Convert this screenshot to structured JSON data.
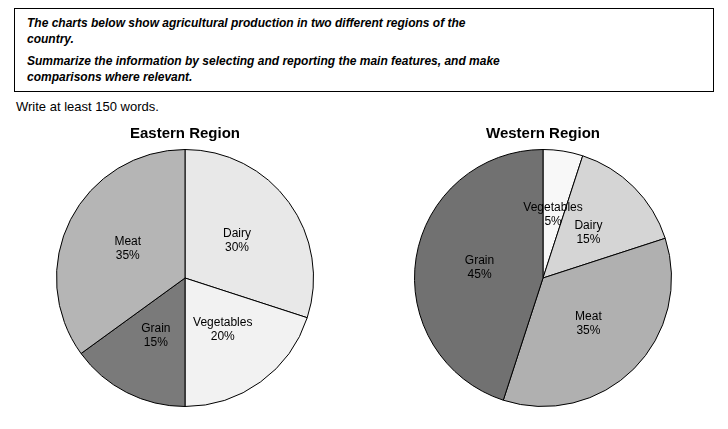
{
  "annotations": [
    "The charts below show agricultural production in two different regions of the\ncountry.",
    "Summarize the information by selecting and reporting the main features, and make\ncomparisons where relevant."
  ],
  "subtitle": "Write at least 150 words.",
  "chart_data": [
    {
      "type": "pie",
      "title": "Eastern Region",
      "categories": [
        "Dairy",
        "Vegetables",
        "Grain",
        "Meat"
      ],
      "values": [
        30,
        20,
        15,
        35
      ],
      "value_labels": [
        "Dairy\n30%",
        "Vegetables\n20%",
        "Grain\n15%",
        "Meat\n35%"
      ],
      "colors": [
        "#e8e8e8",
        "#f2f2f2",
        "#7a7a7a",
        "#b5b5b5"
      ],
      "data_labels": true,
      "legend": false
    },
    {
      "type": "pie",
      "title": "Western Region",
      "categories": [
        "Vegetables",
        "Dairy",
        "Meat",
        "Grain"
      ],
      "values": [
        5,
        15,
        35,
        45
      ],
      "value_labels": [
        "Vegetables\n5%",
        "Dairy\n15%",
        "Meat\n35%",
        "Grain\n45%"
      ],
      "colors": [
        "#f8f8f8",
        "#d5d5d5",
        "#b0b0b0",
        "#717171"
      ],
      "data_labels": true,
      "legend": false
    }
  ]
}
